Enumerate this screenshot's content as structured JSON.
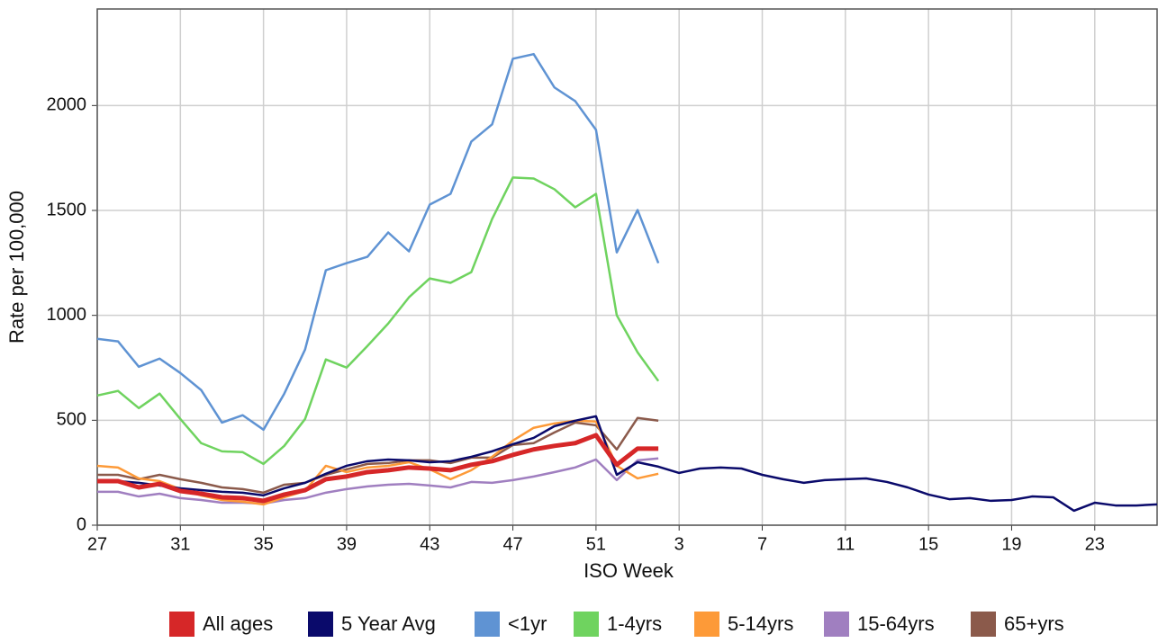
{
  "chart_data": {
    "type": "line",
    "x_label": "ISO Week",
    "y_label": "Rate per 100,000",
    "categories": [
      "27",
      null,
      null,
      null,
      "31",
      null,
      null,
      null,
      "35",
      null,
      null,
      null,
      "39",
      null,
      null,
      null,
      "43",
      null,
      null,
      null,
      "47",
      null,
      null,
      null,
      "51",
      null,
      null,
      null,
      "3",
      null,
      null,
      null,
      "7",
      null,
      null,
      null,
      "11",
      null,
      null,
      null,
      "15",
      null,
      null,
      null,
      "19",
      null,
      null,
      null,
      "23",
      null,
      null,
      null
    ],
    "ylim": [
      0,
      2460
    ],
    "yticks": [
      0,
      500,
      1000,
      1500,
      2000
    ],
    "grid": true,
    "series": [
      {
        "name": "All ages",
        "color": "#d62728",
        "width": 5,
        "values": [
          210,
          210,
          180,
          197,
          163,
          150,
          133,
          129,
          116,
          146,
          167,
          219,
          232,
          253,
          262,
          275,
          270,
          262,
          288,
          305,
          335,
          361,
          378,
          391,
          429,
          288,
          365,
          365,
          null,
          null,
          null,
          null,
          null,
          null,
          null,
          null,
          null,
          null,
          null,
          null,
          null,
          null,
          null,
          null,
          null,
          null,
          null,
          null,
          null,
          null,
          null,
          null
        ]
      },
      {
        "name": "5 Year Avg",
        "color": "#0a0a6b",
        "width": 2.5,
        "values": [
          210,
          210,
          202,
          189,
          176,
          167,
          159,
          155,
          142,
          176,
          202,
          245,
          283,
          305,
          313,
          309,
          300,
          305,
          326,
          352,
          386,
          416,
          472,
          498,
          519,
          240,
          300,
          279,
          249,
          270,
          275,
          270,
          240,
          219,
          202,
          215,
          219,
          223,
          206,
          180,
          146,
          124,
          129,
          116,
          120,
          137,
          133,
          69,
          107,
          94,
          94,
          99
        ]
      },
      {
        "name": "<1yr",
        "color": "#5f93d3",
        "width": 2.5,
        "values": [
          888,
          876,
          755,
          794,
          725,
          644,
          489,
          524,
          455,
          627,
          837,
          1215,
          1249,
          1279,
          1395,
          1305,
          1528,
          1579,
          1828,
          1910,
          2223,
          2245,
          2086,
          2021,
          1884,
          1300,
          1502,
          1249,
          null,
          null,
          null,
          null,
          null,
          null,
          null,
          null,
          null,
          null,
          null,
          null,
          null,
          null,
          null,
          null,
          null,
          null,
          null,
          null,
          null,
          null,
          null,
          null
        ]
      },
      {
        "name": "1-4yrs",
        "color": "#6fd35f",
        "width": 2.5,
        "values": [
          618,
          640,
          558,
          627,
          506,
          391,
          352,
          348,
          292,
          378,
          506,
          790,
          751,
          854,
          961,
          1086,
          1176,
          1155,
          1206,
          1459,
          1657,
          1652,
          1601,
          1515,
          1579,
          1000,
          824,
          687,
          null,
          null,
          null,
          null,
          null,
          null,
          null,
          null,
          null,
          null,
          null,
          null,
          null,
          null,
          null,
          null,
          null,
          null,
          null,
          null,
          null,
          null,
          null,
          null
        ]
      },
      {
        "name": "5-14yrs",
        "color": "#fd9a38",
        "width": 2.5,
        "values": [
          283,
          275,
          223,
          210,
          172,
          142,
          120,
          112,
          99,
          133,
          163,
          283,
          253,
          275,
          283,
          300,
          266,
          219,
          262,
          326,
          403,
          464,
          485,
          498,
          494,
          283,
          223,
          245,
          null,
          null,
          null,
          null,
          null,
          null,
          null,
          null,
          null,
          null,
          null,
          null,
          null,
          null,
          null,
          null,
          null,
          null,
          null,
          null,
          null,
          null,
          null,
          null
        ]
      },
      {
        "name": "15-64yrs",
        "color": "#a07fc0",
        "width": 2.5,
        "values": [
          159,
          159,
          137,
          150,
          129,
          120,
          107,
          107,
          103,
          120,
          129,
          155,
          172,
          185,
          193,
          197,
          189,
          180,
          206,
          202,
          215,
          232,
          253,
          275,
          313,
          215,
          309,
          318,
          null,
          null,
          null,
          null,
          null,
          null,
          null,
          null,
          null,
          null,
          null,
          null,
          null,
          null,
          null,
          null,
          null,
          null,
          null,
          null,
          null,
          null,
          null,
          null
        ]
      },
      {
        "name": "65+yrs",
        "color": "#8b5a4b",
        "width": 2.5,
        "values": [
          240,
          240,
          219,
          240,
          219,
          202,
          180,
          172,
          155,
          193,
          202,
          240,
          266,
          292,
          296,
          309,
          309,
          296,
          322,
          322,
          382,
          391,
          442,
          489,
          476,
          361,
          511,
          498,
          null,
          null,
          null,
          null,
          null,
          null,
          null,
          null,
          null,
          null,
          null,
          null,
          null,
          null,
          null,
          null,
          null,
          null,
          null,
          null,
          null,
          null,
          null,
          null
        ]
      }
    ]
  }
}
